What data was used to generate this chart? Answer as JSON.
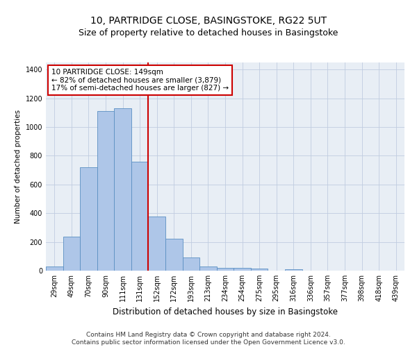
{
  "title1": "10, PARTRIDGE CLOSE, BASINGSTOKE, RG22 5UT",
  "title2": "Size of property relative to detached houses in Basingstoke",
  "xlabel": "Distribution of detached houses by size in Basingstoke",
  "ylabel": "Number of detached properties",
  "bar_labels": [
    "29sqm",
    "49sqm",
    "70sqm",
    "90sqm",
    "111sqm",
    "131sqm",
    "152sqm",
    "172sqm",
    "193sqm",
    "213sqm",
    "234sqm",
    "254sqm",
    "275sqm",
    "295sqm",
    "316sqm",
    "336sqm",
    "357sqm",
    "377sqm",
    "398sqm",
    "418sqm",
    "439sqm"
  ],
  "bar_values": [
    30,
    235,
    720,
    1110,
    1130,
    760,
    375,
    220,
    90,
    30,
    20,
    17,
    14,
    0,
    10,
    0,
    0,
    0,
    0,
    0,
    0
  ],
  "bar_color": "#aec6e8",
  "bar_edge_color": "#5a8fc2",
  "property_line_x": 5.5,
  "property_line_color": "#cc0000",
  "annotation_text": "10 PARTRIDGE CLOSE: 149sqm\n← 82% of detached houses are smaller (3,879)\n17% of semi-detached houses are larger (827) →",
  "annotation_box_color": "#ffffff",
  "annotation_box_edge_color": "#cc0000",
  "ylim": [
    0,
    1450
  ],
  "yticks": [
    0,
    200,
    400,
    600,
    800,
    1000,
    1200,
    1400
  ],
  "background_color": "#e8eef5",
  "footer_text": "Contains HM Land Registry data © Crown copyright and database right 2024.\nContains public sector information licensed under the Open Government Licence v3.0.",
  "title1_fontsize": 10,
  "title2_fontsize": 9,
  "xlabel_fontsize": 8.5,
  "ylabel_fontsize": 7.5,
  "tick_fontsize": 7,
  "footer_fontsize": 6.5,
  "annotation_fontsize": 7.5
}
